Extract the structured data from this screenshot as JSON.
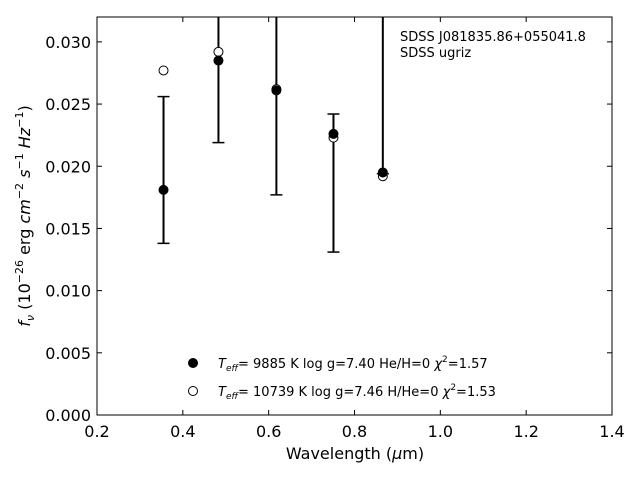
{
  "chart_data": {
    "type": "scatter",
    "annotation": [
      "SDSS J081835.86+055041.8",
      "SDSS ugriz"
    ],
    "xlabel": "Wavelength (μm)",
    "ylabel": "f_ν (10^-26 erg cm^-2 s^-1 Hz^-1)",
    "xlim": [
      0.2,
      1.4
    ],
    "ylim": [
      0.0,
      0.032
    ],
    "xticks": [
      0.2,
      0.4,
      0.6,
      0.8,
      1.0,
      1.2,
      1.4
    ],
    "xtick_labels": [
      "0.2",
      "0.4",
      "0.6",
      "0.8",
      "1.0",
      "1.2",
      "1.4"
    ],
    "yticks": [
      0.0,
      0.005,
      0.01,
      0.015,
      0.02,
      0.025,
      0.03
    ],
    "ytick_labels": [
      "0.000",
      "0.005",
      "0.010",
      "0.015",
      "0.020",
      "0.025",
      "0.030"
    ],
    "grid": false,
    "legend_position": "bottom-center",
    "observed": {
      "marker": "filled-circle",
      "points": [
        {
          "x": 0.355,
          "y": 0.0181,
          "err_low": 0.0138,
          "err_high": 0.0256
        },
        {
          "x": 0.483,
          "y": 0.0285,
          "err_low": 0.0219,
          "err_high": 0.035
        },
        {
          "x": 0.618,
          "y": 0.0261,
          "err_low": 0.0177,
          "err_high": 0.035
        },
        {
          "x": 0.751,
          "y": 0.0226,
          "err_low": 0.0131,
          "err_high": 0.0242
        },
        {
          "x": 0.866,
          "y": 0.0195,
          "err_low": 0.0194,
          "err_high": 0.035
        }
      ]
    },
    "model": {
      "marker": "open-circle",
      "points": [
        {
          "x": 0.355,
          "y": 0.0277
        },
        {
          "x": 0.483,
          "y": 0.0292
        },
        {
          "x": 0.618,
          "y": 0.0262
        },
        {
          "x": 0.751,
          "y": 0.0223
        },
        {
          "x": 0.866,
          "y": 0.0192
        }
      ]
    },
    "legend": [
      {
        "marker": "filled-circle",
        "teff": "9885",
        "logg": "7.40",
        "comp": "He/H=0",
        "chi2": "1.57"
      },
      {
        "marker": "open-circle",
        "teff": "10739",
        "logg": "7.46",
        "comp": "H/He=0",
        "chi2": "1.53"
      }
    ]
  }
}
